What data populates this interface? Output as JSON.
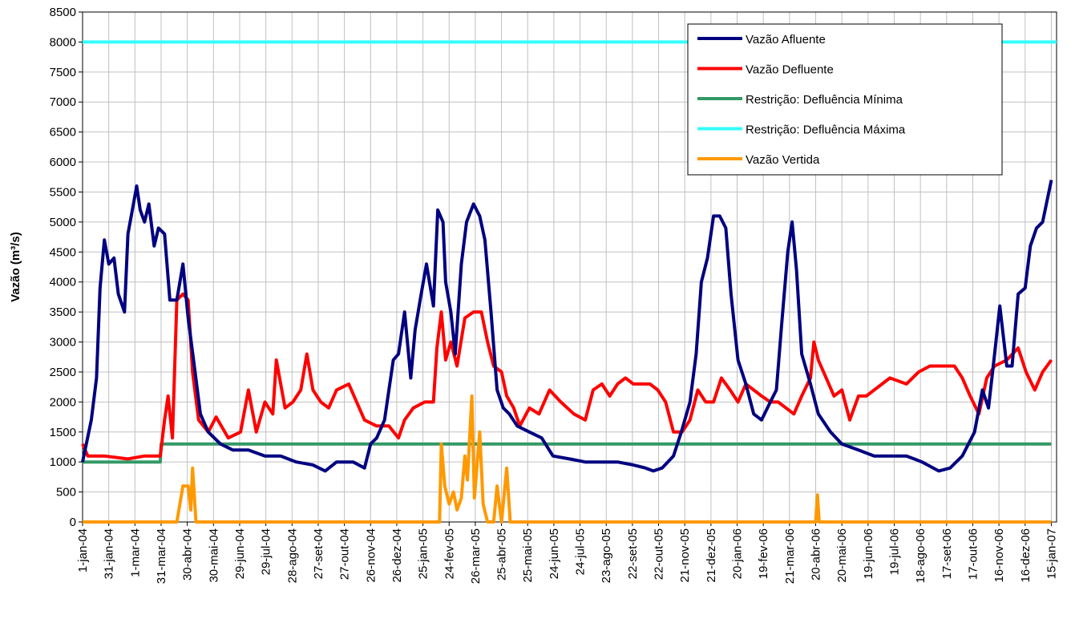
{
  "chart_data": {
    "type": "line",
    "ylabel": "Vazão (m³/s)",
    "ylim": [
      0,
      8500
    ],
    "yticks": [
      0,
      500,
      1000,
      1500,
      2000,
      2500,
      3000,
      3500,
      4000,
      4500,
      5000,
      5500,
      6000,
      6500,
      7000,
      7500,
      8000,
      8500
    ],
    "xlim": [
      0,
      1116
    ],
    "xticks": [
      {
        "value": 0,
        "label": "1-jan-04"
      },
      {
        "value": 30,
        "label": "31-jan-04"
      },
      {
        "value": 60,
        "label": "1-mar-04"
      },
      {
        "value": 90,
        "label": "31-mar-04"
      },
      {
        "value": 120,
        "label": "30-abr-04"
      },
      {
        "value": 150,
        "label": "30-mai-04"
      },
      {
        "value": 180,
        "label": "29-jun-04"
      },
      {
        "value": 210,
        "label": "29-jul-04"
      },
      {
        "value": 240,
        "label": "28-ago-04"
      },
      {
        "value": 270,
        "label": "27-set-04"
      },
      {
        "value": 300,
        "label": "27-out-04"
      },
      {
        "value": 330,
        "label": "26-nov-04"
      },
      {
        "value": 360,
        "label": "26-dez-04"
      },
      {
        "value": 390,
        "label": "25-jan-05"
      },
      {
        "value": 420,
        "label": "24-fev-05"
      },
      {
        "value": 450,
        "label": "26-mar-05"
      },
      {
        "value": 480,
        "label": "25-abr-05"
      },
      {
        "value": 510,
        "label": "25-mai-05"
      },
      {
        "value": 540,
        "label": "24-jun-05"
      },
      {
        "value": 570,
        "label": "24-jul-05"
      },
      {
        "value": 600,
        "label": "23-ago-05"
      },
      {
        "value": 630,
        "label": "22-set-05"
      },
      {
        "value": 660,
        "label": "22-out-05"
      },
      {
        "value": 690,
        "label": "21-nov-05"
      },
      {
        "value": 720,
        "label": "21-dez-05"
      },
      {
        "value": 750,
        "label": "20-jan-06"
      },
      {
        "value": 780,
        "label": "19-fev-06"
      },
      {
        "value": 810,
        "label": "21-mar-06"
      },
      {
        "value": 840,
        "label": "20-abr-06"
      },
      {
        "value": 870,
        "label": "20-mai-06"
      },
      {
        "value": 900,
        "label": "19-jun-06"
      },
      {
        "value": 930,
        "label": "19-jul-06"
      },
      {
        "value": 960,
        "label": "18-ago-06"
      },
      {
        "value": 990,
        "label": "17-set-06"
      },
      {
        "value": 1020,
        "label": "17-out-06"
      },
      {
        "value": 1050,
        "label": "16-nov-06"
      },
      {
        "value": 1080,
        "label": "16-dez-06"
      },
      {
        "value": 1110,
        "label": "15-jan-07"
      }
    ],
    "grid": true,
    "legend": "upper right",
    "series": [
      {
        "name": "Vazão Afluente",
        "color": "#000080",
        "x": [
          0,
          10,
          16,
          20,
          25,
          30,
          36,
          41,
          48,
          52,
          57,
          62,
          66,
          71,
          76,
          82,
          87,
          94,
          100,
          108,
          115,
          121,
          128,
          135,
          144,
          158,
          172,
          190,
          209,
          227,
          245,
          264,
          278,
          291,
          310,
          323,
          330,
          337,
          346,
          356,
          362,
          369,
          376,
          381,
          388,
          394,
          402,
          407,
          413,
          416,
          422,
          427,
          434,
          440,
          448,
          455,
          461,
          468,
          475,
          482,
          489,
          498,
          512,
          526,
          539,
          558,
          576,
          595,
          613,
          631,
          645,
          654,
          664,
          677,
          686,
          696,
          703,
          709,
          716,
          723,
          730,
          737,
          743,
          751,
          760,
          769,
          778,
          788,
          795,
          801,
          808,
          813,
          818,
          824,
          834,
          843,
          857,
          870,
          889,
          907,
          925,
          944,
          962,
          981,
          994,
          1008,
          1022,
          1031,
          1038,
          1045,
          1051,
          1059,
          1065,
          1072,
          1080,
          1086,
          1093,
          1100,
          1110
        ],
        "values": [
          1000,
          1700,
          2400,
          3900,
          4700,
          4300,
          4400,
          3800,
          3500,
          4800,
          5200,
          5600,
          5200,
          5000,
          5300,
          4600,
          4900,
          4800,
          3700,
          3700,
          4300,
          3400,
          2600,
          1800,
          1500,
          1300,
          1200,
          1200,
          1100,
          1100,
          1000,
          950,
          850,
          1000,
          1000,
          900,
          1300,
          1400,
          1700,
          2700,
          2800,
          3500,
          2400,
          3200,
          3800,
          4300,
          3600,
          5200,
          5000,
          4000,
          3500,
          2800,
          4300,
          5000,
          5300,
          5100,
          4700,
          3500,
          2200,
          1900,
          1800,
          1600,
          1500,
          1400,
          1100,
          1050,
          1000,
          1000,
          1000,
          950,
          900,
          850,
          900,
          1100,
          1500,
          2000,
          2800,
          4000,
          4400,
          5100,
          5100,
          4900,
          3800,
          2700,
          2300,
          1800,
          1700,
          2000,
          2200,
          3300,
          4500,
          5000,
          4200,
          2800,
          2300,
          1800,
          1500,
          1300,
          1200,
          1100,
          1100,
          1100,
          1000,
          850,
          900,
          1100,
          1500,
          2200,
          1900,
          2800,
          3600,
          2600,
          2600,
          3800,
          3900,
          4600,
          4900,
          5000,
          5700
        ]
      },
      {
        "name": "Vazão Defluente",
        "color": "#ff0000",
        "x": [
          0,
          6,
          25,
          52,
          71,
          89,
          94,
          98,
          103,
          108,
          115,
          121,
          126,
          133,
          144,
          153,
          167,
          181,
          190,
          199,
          209,
          218,
          222,
          232,
          241,
          250,
          257,
          264,
          273,
          282,
          291,
          305,
          314,
          323,
          337,
          351,
          362,
          369,
          379,
          392,
          402,
          406,
          411,
          416,
          422,
          429,
          438,
          448,
          457,
          464,
          471,
          480,
          486,
          494,
          501,
          512,
          523,
          535,
          548,
          563,
          576,
          585,
          595,
          604,
          613,
          622,
          631,
          641,
          650,
          659,
          668,
          677,
          687,
          696,
          705,
          714,
          723,
          732,
          742,
          751,
          760,
          769,
          778,
          788,
          797,
          806,
          815,
          824,
          834,
          838,
          843,
          852,
          861,
          870,
          879,
          889,
          898,
          907,
          916,
          925,
          944,
          958,
          971,
          985,
          999,
          1008,
          1017,
          1027,
          1036,
          1045,
          1059,
          1072,
          1081,
          1091,
          1100,
          1110
        ],
        "values": [
          1300,
          1100,
          1100,
          1050,
          1100,
          1100,
          1700,
          2100,
          1400,
          3700,
          3800,
          3700,
          2500,
          1700,
          1500,
          1750,
          1400,
          1500,
          2200,
          1500,
          2000,
          1800,
          2700,
          1900,
          2000,
          2200,
          2800,
          2200,
          2000,
          1900,
          2200,
          2300,
          2000,
          1700,
          1600,
          1600,
          1400,
          1700,
          1900,
          2000,
          2000,
          2900,
          3500,
          2700,
          3000,
          2600,
          3400,
          3500,
          3500,
          3000,
          2600,
          2500,
          2100,
          1900,
          1600,
          1900,
          1800,
          2200,
          2000,
          1800,
          1700,
          2200,
          2300,
          2100,
          2300,
          2400,
          2300,
          2300,
          2300,
          2200,
          2000,
          1500,
          1500,
          1700,
          2200,
          2000,
          2000,
          2400,
          2200,
          2000,
          2300,
          2200,
          2100,
          2000,
          2000,
          1900,
          1800,
          2100,
          2400,
          3000,
          2700,
          2400,
          2100,
          2200,
          1700,
          2100,
          2100,
          2200,
          2300,
          2400,
          2300,
          2500,
          2600,
          2600,
          2600,
          2400,
          2100,
          1800,
          2400,
          2600,
          2700,
          2900,
          2500,
          2200,
          2500,
          2700
        ]
      },
      {
        "name": "Restrição: Defluência Mínima",
        "color": "#339966",
        "x": [
          0,
          89,
          90,
          1110
        ],
        "values": [
          1000,
          1000,
          1300,
          1300
        ]
      },
      {
        "name": "Restrição: Defluência Máxima",
        "color": "#33ffff",
        "x": [
          0,
          1116
        ],
        "values": [
          8000,
          8000
        ]
      },
      {
        "name": "Vazão Vertida",
        "color": "#ff9900",
        "x": [
          0,
          108,
          115,
          121,
          124,
          126,
          130,
          409,
          411,
          415,
          420,
          425,
          429,
          434,
          438,
          441,
          446,
          449,
          455,
          459,
          464,
          471,
          475,
          480,
          486,
          490,
          840,
          842,
          844,
          1110
        ],
        "values": [
          0,
          0,
          600,
          600,
          200,
          900,
          0,
          0,
          1300,
          600,
          300,
          500,
          200,
          400,
          1100,
          700,
          2100,
          400,
          1500,
          300,
          0,
          0,
          600,
          0,
          900,
          0,
          0,
          450,
          0,
          0
        ]
      }
    ]
  }
}
